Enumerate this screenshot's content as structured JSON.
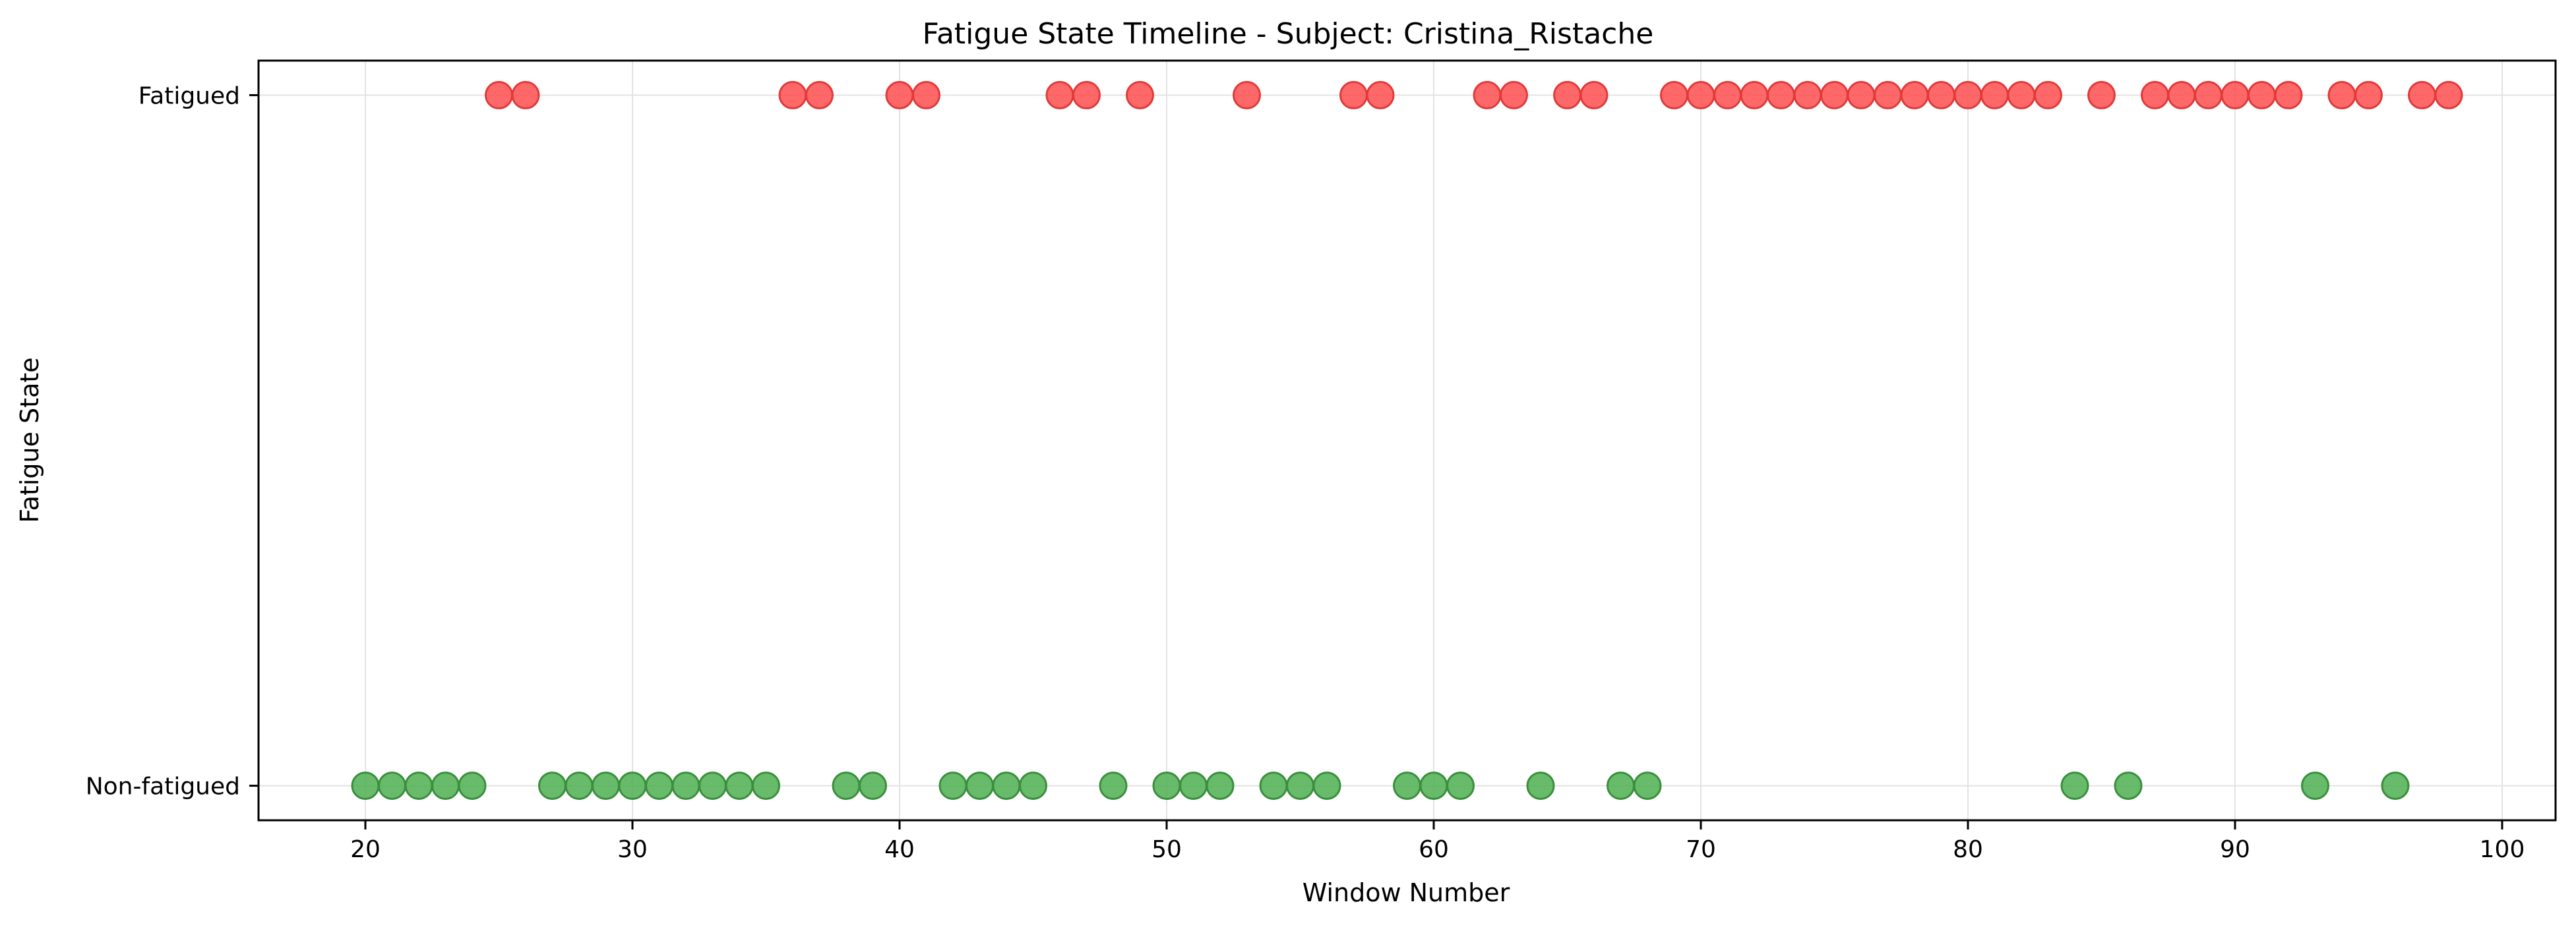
{
  "chart_data": {
    "type": "scatter",
    "title": "Fatigue State Timeline - Subject: Cristina_Ristache",
    "xlabel": "Window Number",
    "ylabel": "Fatigue State",
    "xlim": [
      16,
      102
    ],
    "xticks": [
      20,
      30,
      40,
      50,
      60,
      70,
      80,
      90,
      100
    ],
    "ylim": [
      -0.05,
      1.05
    ],
    "yticks": [
      {
        "value": 0,
        "label": "Non-fatigued"
      },
      {
        "value": 1,
        "label": "Fatigued"
      }
    ],
    "grid": true,
    "series": [
      {
        "color": "#ff4d4d",
        "edge_color": "#e03a3a",
        "y": 1,
        "x": [
          25,
          26,
          36,
          37,
          40,
          41,
          46,
          47,
          49,
          53,
          57,
          58,
          62,
          63,
          65,
          66,
          69,
          70,
          71,
          72,
          73,
          74,
          75,
          76,
          77,
          78,
          79,
          80,
          81,
          82,
          83,
          85,
          87,
          88,
          89,
          90,
          91,
          92,
          94,
          95,
          97,
          98
        ]
      },
      {
        "color": "#4caf50",
        "edge_color": "#3a8f3d",
        "y": 0,
        "x": [
          20,
          21,
          22,
          23,
          24,
          27,
          28,
          29,
          30,
          31,
          32,
          33,
          34,
          35,
          38,
          39,
          42,
          43,
          44,
          45,
          48,
          50,
          51,
          52,
          54,
          55,
          56,
          59,
          60,
          61,
          64,
          67,
          68,
          84,
          86,
          93,
          96
        ]
      }
    ]
  }
}
